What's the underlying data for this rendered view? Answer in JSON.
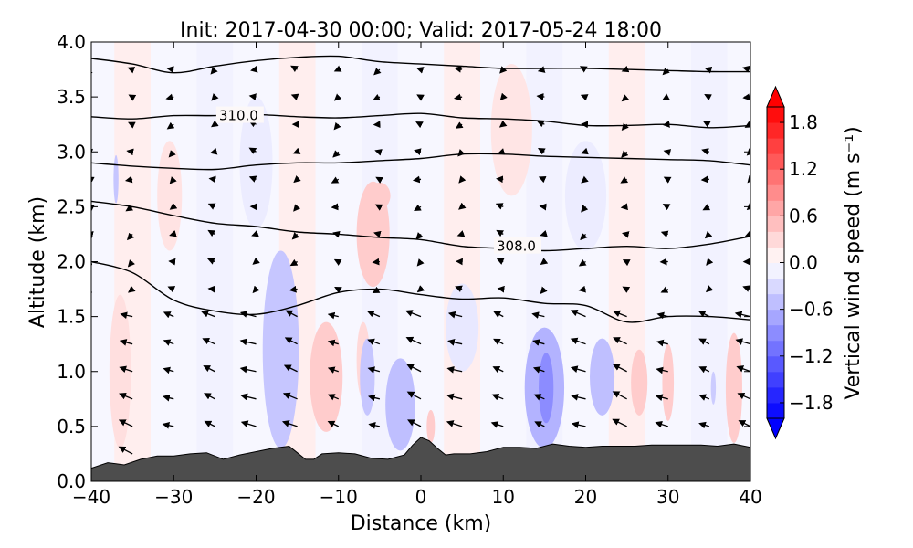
{
  "chart_data": {
    "type": "contour-section",
    "title": "Init: 2017-04-30 00:00; Valid: 2017-05-24 18:00",
    "xlabel": "Distance (km)",
    "ylabel": "Altitude (km)",
    "xlim": [
      -40,
      40
    ],
    "ylim": [
      0.0,
      4.0
    ],
    "x_ticks": [
      -40,
      -30,
      -20,
      -10,
      0,
      10,
      20,
      30,
      40
    ],
    "x_tick_labels": [
      "−40",
      "−30",
      "−20",
      "−10",
      "0",
      "10",
      "20",
      "30",
      "40"
    ],
    "y_ticks": [
      0.0,
      0.5,
      1.0,
      1.5,
      2.0,
      2.5,
      3.0,
      3.5,
      4.0
    ],
    "y_tick_labels": [
      "0.0",
      "0.5",
      "1.0",
      "1.5",
      "2.0",
      "2.5",
      "3.0",
      "3.5",
      "4.0"
    ],
    "colorbar": {
      "label": "Vertical wind speed (m s⁻¹)",
      "range": [
        -2.0,
        2.0
      ],
      "ticks": [
        1.8,
        1.2,
        0.6,
        0.0,
        -0.6,
        -1.2,
        -1.8
      ],
      "tick_labels": [
        "1.8",
        "1.2",
        "0.6",
        "0.0",
        "−0.6",
        "−1.2",
        "−1.8"
      ],
      "extend": "both",
      "colormap": "bwr",
      "colors": {
        "negative": "#0000ff",
        "zero": "#ffffff",
        "positive": "#ff0000"
      }
    },
    "terrain": {
      "color": "#4d4d4d",
      "x": [
        -40,
        -38,
        -36,
        -34,
        -32,
        -30,
        -28,
        -26,
        -24,
        -22,
        -20,
        -18,
        -16,
        -15,
        -14,
        -13,
        -12,
        -10,
        -8,
        -6,
        -4,
        -2,
        -1,
        0,
        1,
        2,
        3,
        4,
        6,
        8,
        10,
        12,
        14,
        16,
        18,
        20,
        22,
        24,
        26,
        28,
        30,
        32,
        34,
        36,
        38,
        40
      ],
      "y": [
        0.12,
        0.17,
        0.15,
        0.2,
        0.23,
        0.23,
        0.25,
        0.26,
        0.2,
        0.24,
        0.27,
        0.3,
        0.32,
        0.26,
        0.2,
        0.2,
        0.25,
        0.26,
        0.25,
        0.21,
        0.2,
        0.24,
        0.33,
        0.4,
        0.37,
        0.3,
        0.24,
        0.25,
        0.25,
        0.27,
        0.31,
        0.31,
        0.3,
        0.34,
        0.32,
        0.31,
        0.32,
        0.32,
        0.32,
        0.33,
        0.33,
        0.33,
        0.33,
        0.32,
        0.34,
        0.31
      ]
    },
    "theta_contours": {
      "x": [
        -40,
        -35,
        -30,
        -25,
        -20,
        -15,
        -10,
        -5,
        0,
        5,
        10,
        15,
        20,
        25,
        30,
        35,
        40
      ],
      "lines": [
        [
          2.0,
          1.9,
          1.65,
          1.55,
          1.52,
          1.6,
          1.72,
          1.75,
          1.7,
          1.66,
          1.67,
          1.62,
          1.6,
          1.45,
          1.5,
          1.5,
          1.47
        ],
        [
          2.55,
          2.5,
          2.42,
          2.35,
          2.32,
          2.27,
          2.25,
          2.22,
          2.2,
          2.14,
          2.12,
          2.1,
          2.12,
          2.14,
          2.12,
          2.16,
          2.23
        ],
        [
          2.9,
          2.87,
          2.85,
          2.84,
          2.88,
          2.9,
          2.9,
          2.92,
          2.94,
          2.98,
          2.98,
          2.96,
          2.95,
          2.94,
          2.93,
          2.92,
          2.88
        ],
        [
          3.32,
          3.3,
          3.33,
          3.33,
          3.34,
          3.32,
          3.31,
          3.33,
          3.35,
          3.31,
          3.3,
          3.28,
          3.24,
          3.24,
          3.25,
          3.22,
          3.24
        ],
        [
          3.85,
          3.8,
          3.72,
          3.78,
          3.83,
          3.86,
          3.87,
          3.82,
          3.8,
          3.78,
          3.76,
          3.76,
          3.76,
          3.75,
          3.74,
          3.73,
          3.73
        ]
      ],
      "labels": [
        {
          "text": "310.0",
          "x": -24.5,
          "y": 3.33
        },
        {
          "text": "308.0",
          "x": 9.2,
          "y": 2.14
        }
      ]
    },
    "w_anomalies": [
      {
        "cx": -5.8,
        "cy": 2.25,
        "rx": 2.0,
        "ry": 0.48,
        "value": 0.4
      },
      {
        "cx": -5.0,
        "cy": 2.6,
        "rx": 1.3,
        "ry": 0.12,
        "value": 0.4
      },
      {
        "cx": -11.5,
        "cy": 0.95,
        "rx": 2.0,
        "ry": 0.5,
        "value": 0.4
      },
      {
        "cx": 26.5,
        "cy": 0.9,
        "rx": 1.0,
        "ry": 0.3,
        "value": 0.4
      },
      {
        "cx": 30.0,
        "cy": 0.9,
        "rx": 0.7,
        "ry": 0.35,
        "value": 0.4
      },
      {
        "cx": 38.0,
        "cy": 0.85,
        "rx": 1.0,
        "ry": 0.5,
        "value": 0.4
      },
      {
        "cx": -7.0,
        "cy": 1.1,
        "rx": 0.8,
        "ry": 0.35,
        "value": 0.3
      },
      {
        "cx": 1.2,
        "cy": 0.5,
        "rx": 0.5,
        "ry": 0.15,
        "value": 0.4
      },
      {
        "cx": -36.5,
        "cy": 1.0,
        "rx": 1.3,
        "ry": 0.7,
        "value": 0.25
      },
      {
        "cx": -30.5,
        "cy": 2.6,
        "rx": 1.5,
        "ry": 0.5,
        "value": 0.22
      },
      {
        "cx": 11.0,
        "cy": 3.2,
        "rx": 2.5,
        "ry": 0.6,
        "value": 0.2
      },
      {
        "cx": -17.0,
        "cy": 1.2,
        "rx": 2.2,
        "ry": 0.9,
        "value": -0.45
      },
      {
        "cx": -6.5,
        "cy": 0.95,
        "rx": 0.9,
        "ry": 0.35,
        "value": -0.45
      },
      {
        "cx": -2.5,
        "cy": 0.7,
        "rx": 1.8,
        "ry": 0.42,
        "value": -0.5
      },
      {
        "cx": 15.0,
        "cy": 0.85,
        "rx": 2.4,
        "ry": 0.55,
        "value": -0.6
      },
      {
        "cx": 15.2,
        "cy": 0.85,
        "rx": 0.9,
        "ry": 0.32,
        "value": -0.9
      },
      {
        "cx": 22.0,
        "cy": 0.95,
        "rx": 1.5,
        "ry": 0.35,
        "value": -0.5
      },
      {
        "cx": -37.0,
        "cy": 2.75,
        "rx": 0.3,
        "ry": 0.22,
        "value": -0.45
      },
      {
        "cx": 35.5,
        "cy": 0.85,
        "rx": 0.3,
        "ry": 0.15,
        "value": -0.4
      },
      {
        "cx": 5.0,
        "cy": 1.4,
        "rx": 2.0,
        "ry": 0.4,
        "value": -0.18
      },
      {
        "cx": 20.0,
        "cy": 2.6,
        "rx": 2.5,
        "ry": 0.5,
        "value": -0.15
      },
      {
        "cx": -20.0,
        "cy": 2.9,
        "rx": 2.0,
        "ry": 0.6,
        "value": -0.15
      }
    ],
    "wind_vectors": {
      "x_step": 5,
      "y_start": 0.25,
      "y_step": 0.25,
      "flow_direction": "westward, rising over terrain"
    }
  }
}
